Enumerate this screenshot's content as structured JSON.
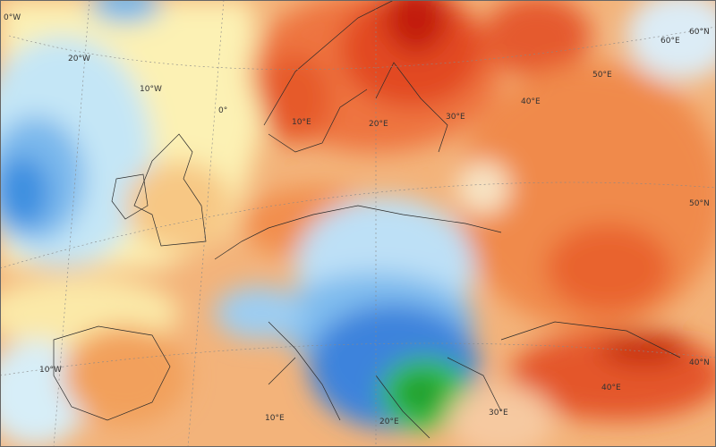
{
  "graticule_labels": [
    "0°W",
    "20°W",
    "10°W",
    "0°",
    "10°E",
    "20°E",
    "30°E",
    "40°E",
    "50°E",
    "60°E",
    "60°N",
    "50°N",
    "40°N",
    "10°W",
    "10°E",
    "20°E",
    "30°E",
    "40°E"
  ]
}
